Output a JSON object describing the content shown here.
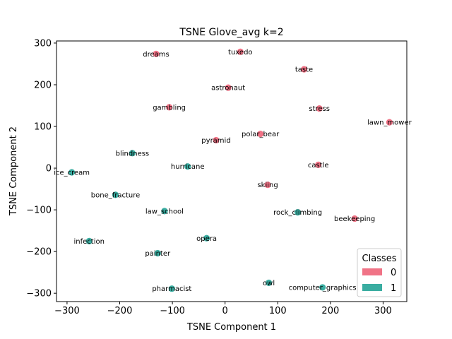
{
  "chart_data": {
    "type": "scatter",
    "title": "TSNE Glove_avg k=2",
    "xlabel": "TSNE Component 1",
    "ylabel": "TSNE Component 2",
    "xlim": [
      -320,
      345
    ],
    "ylim": [
      -320,
      305
    ],
    "xticks": [
      -300,
      -200,
      -100,
      0,
      100,
      200,
      300
    ],
    "yticks": [
      -300,
      -200,
      -100,
      0,
      100,
      200,
      300
    ],
    "grid": false,
    "legend": {
      "title": "Classes",
      "placement": "lower-right"
    },
    "series": [
      {
        "name": "0",
        "color": "#f07386",
        "points": [
          {
            "x": -131,
            "y": 274,
            "label": "dreams"
          },
          {
            "x": 29,
            "y": 279,
            "label": "tuxedo"
          },
          {
            "x": 150,
            "y": 237,
            "label": "taste"
          },
          {
            "x": 6,
            "y": 193,
            "label": "astronaut"
          },
          {
            "x": -106,
            "y": 146,
            "label": "gambling"
          },
          {
            "x": 179,
            "y": 143,
            "label": "stress"
          },
          {
            "x": 312,
            "y": 110,
            "label": "lawn_mower"
          },
          {
            "x": 67,
            "y": 82,
            "label": "polar_bear"
          },
          {
            "x": -17,
            "y": 67,
            "label": "pyramid"
          },
          {
            "x": 177,
            "y": 8,
            "label": "castle"
          },
          {
            "x": 81,
            "y": -40,
            "label": "skiing"
          },
          {
            "x": 246,
            "y": -121,
            "label": "beekeeping"
          }
        ]
      },
      {
        "name": "1",
        "color": "#3aada1",
        "points": [
          {
            "x": -176,
            "y": 36,
            "label": "blindness"
          },
          {
            "x": -291,
            "y": -10,
            "label": "ice_cream"
          },
          {
            "x": -71,
            "y": 4,
            "label": "hurricane"
          },
          {
            "x": -208,
            "y": -64,
            "label": "bone_fracture"
          },
          {
            "x": -115,
            "y": -103,
            "label": "law_school"
          },
          {
            "x": 138,
            "y": -106,
            "label": "rock_climbing"
          },
          {
            "x": -35,
            "y": -168,
            "label": "opera"
          },
          {
            "x": -258,
            "y": -175,
            "label": "infection"
          },
          {
            "x": -128,
            "y": -204,
            "label": "painter"
          },
          {
            "x": 83,
            "y": -275,
            "label": "owl"
          },
          {
            "x": 185,
            "y": -286,
            "label": "computer_graphics"
          },
          {
            "x": -101,
            "y": -289,
            "label": "pharmacist"
          }
        ]
      }
    ]
  }
}
